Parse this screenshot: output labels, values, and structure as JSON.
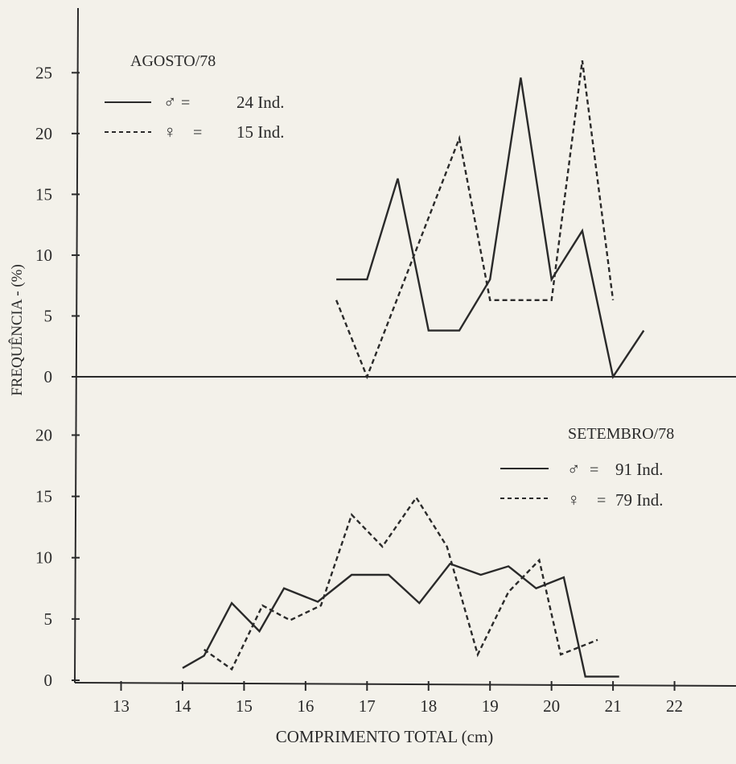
{
  "chart_data": [
    {
      "type": "line",
      "panel": "top",
      "title": "AGOSTO/78",
      "xlabel": "COMPRIMENTO TOTAL (cm)",
      "ylabel": "FREQUÊNCIA - (%)",
      "ylim": [
        0,
        28
      ],
      "yticks": [
        0,
        5,
        10,
        15,
        20,
        25
      ],
      "grid": false,
      "legend_position": "top-left",
      "series": [
        {
          "name": "♂ = 24 Ind.",
          "style": "solid",
          "x": [
            16.5,
            17.0,
            17.5,
            18.0,
            18.5,
            19.0,
            19.5,
            20.0,
            20.5,
            21.0,
            21.5
          ],
          "y": [
            8,
            8,
            16.3,
            3.8,
            3.8,
            8,
            24.6,
            8,
            12,
            0,
            3.8
          ]
        },
        {
          "name": "♀ = 15 Ind.",
          "style": "dashed",
          "x": [
            16.5,
            17.0,
            18.5,
            19.0,
            20.0,
            20.5,
            21.0
          ],
          "y": [
            6.3,
            0,
            19.6,
            6.3,
            6.3,
            26,
            6.3
          ]
        }
      ]
    },
    {
      "type": "line",
      "panel": "bottom",
      "title": "SETEMBRO/78",
      "xlabel": "COMPRIMENTO TOTAL (cm)",
      "ylabel": "FREQUÊNCIA - (%)",
      "ylim": [
        0,
        22
      ],
      "yticks": [
        0,
        5,
        10,
        15,
        20
      ],
      "xlim": [
        12.3,
        23.0
      ],
      "xticks": [
        13,
        14,
        15,
        16,
        17,
        18,
        19,
        20,
        21,
        22
      ],
      "grid": false,
      "legend_position": "right",
      "series": [
        {
          "name": "♂ = 91 Ind.",
          "style": "solid",
          "x": [
            14.0,
            14.35,
            14.8,
            15.25,
            15.65,
            16.2,
            16.75,
            17.35,
            17.85,
            18.35,
            18.85,
            19.3,
            19.75,
            20.2,
            20.55,
            21.1
          ],
          "y": [
            1,
            2,
            6.3,
            4,
            7.5,
            6.4,
            8.6,
            8.6,
            6.3,
            9.5,
            8.6,
            9.3,
            7.5,
            8.4,
            0.3,
            0.3
          ]
        },
        {
          "name": "♀ = 79 Ind.",
          "style": "dashed",
          "x": [
            14.35,
            14.8,
            15.3,
            15.75,
            16.25,
            16.75,
            17.25,
            17.8,
            18.3,
            18.8,
            19.3,
            19.8,
            20.15,
            20.75
          ],
          "y": [
            2.5,
            0.9,
            6.1,
            4.9,
            6.1,
            13.5,
            10.9,
            14.9,
            10.9,
            2.1,
            7.2,
            9.8,
            2.1,
            3.3
          ]
        }
      ]
    }
  ],
  "labels": {
    "x_axis_title": "COMPRIMENTO TOTAL (cm)",
    "y_axis_title": "FREQUÊNCIA - (%)",
    "top_panel_title": "AGOSTO/78",
    "bottom_panel_title": "SETEMBRO/78",
    "top_legend": [
      {
        "symbol": "♂",
        "eq": "=",
        "text": "24 Ind."
      },
      {
        "symbol": "♀",
        "eq": "=",
        "text": "15 Ind."
      }
    ],
    "bottom_legend": [
      {
        "symbol": "♂",
        "eq": "=",
        "text": "91 Ind."
      },
      {
        "symbol": "♀",
        "eq": "=",
        "text": "79 Ind."
      }
    ]
  },
  "colors": {
    "ink": "#2a2a2a",
    "paper": "#f3f1ea"
  }
}
